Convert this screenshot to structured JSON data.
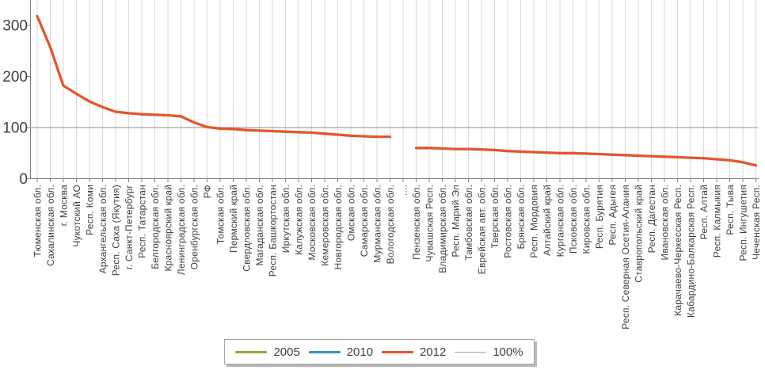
{
  "chart_data": {
    "type": "line",
    "title": "",
    "xlabel": "",
    "ylabel": "",
    "ylim": [
      0,
      350
    ],
    "yticks": [
      0,
      100,
      200,
      300
    ],
    "grid": "vertical-only",
    "legend_position": "bottom-center",
    "colors": {
      "gridline": "#D9D9D9",
      "axis": "#808080",
      "tick_text": "#404040"
    },
    "reference_line": {
      "label": "100%",
      "value": 100,
      "color": "#A3A3A3"
    },
    "categories": [
      "Тюменская обл.",
      "Сахалинская обл.",
      "г. Москва",
      "Чукотский АО",
      "Респ. Коми",
      "Архангельская обл.",
      "Респ. Саха (Якутия)",
      "г. Санкт-Петербург",
      "Респ. Татарстан",
      "Белгородская обл.",
      "Красноярский край",
      "Ленинградская обл.",
      "Оренбургская обл.",
      "РФ",
      "Томская обл.",
      "Пермский край",
      "Свердловская обл.",
      "Магаданская обл.",
      "Респ. Башкортостан",
      "Иркутская обл.",
      "Калужская обл.",
      "Московская обл.",
      "Кемеровская обл.",
      "Новгородская обл.",
      "Омская обл.",
      "Самарская обл.",
      "Мурманская обл.",
      "Вологодская обл.",
      "....",
      "Пензенская обл.",
      "Чувашская Респ.",
      "Владимирская обл.",
      "Респ. Марий Эл",
      "Тамбовская обл.",
      "Еврейская авт. обл.",
      "Тверская обл.",
      "Ростовская обл.",
      "Брянская обл.",
      "Респ. Мордовия",
      "Алтайский край",
      "Курганская обл.",
      "Псковская обл.",
      "Кировская обл.",
      "Респ. Бурятия",
      "Респ. Адыгея",
      "Респ. Северная Осетия-Алания",
      "Ставропольский край",
      "Респ. Дагестан",
      "Ивановская обл.",
      "Карачаево-Черкесская Респ.",
      "Кабардино-Балкарская Респ.",
      "Респ. Алтай",
      "Респ. Калмыкия",
      "Респ. Тыва",
      "Респ. Ингушетия",
      "Чеченская Респ."
    ],
    "series": [
      {
        "name": "2012",
        "color": "#E2572C",
        "values": [
          318,
          257,
          182,
          166,
          151,
          140,
          131,
          128,
          126,
          125,
          124,
          122,
          110,
          101,
          98,
          97,
          95,
          94,
          93,
          92,
          91,
          90,
          88,
          86,
          84,
          83,
          82,
          82,
          null,
          60,
          60,
          59,
          58,
          58,
          57,
          56,
          54,
          53,
          52,
          51,
          50,
          50,
          49,
          48,
          47,
          46,
          45,
          44,
          43,
          42,
          41,
          40,
          38,
          36,
          32,
          26
        ]
      }
    ]
  },
  "legend": {
    "items": [
      {
        "label": "2005",
        "color": "#8FAB42",
        "thickness": 3
      },
      {
        "label": "2010",
        "color": "#3690C0",
        "thickness": 3
      },
      {
        "label": "2012",
        "color": "#E2572C",
        "thickness": 3
      },
      {
        "label": "100%",
        "color": "#A6A6A6",
        "thickness": 1
      }
    ]
  }
}
